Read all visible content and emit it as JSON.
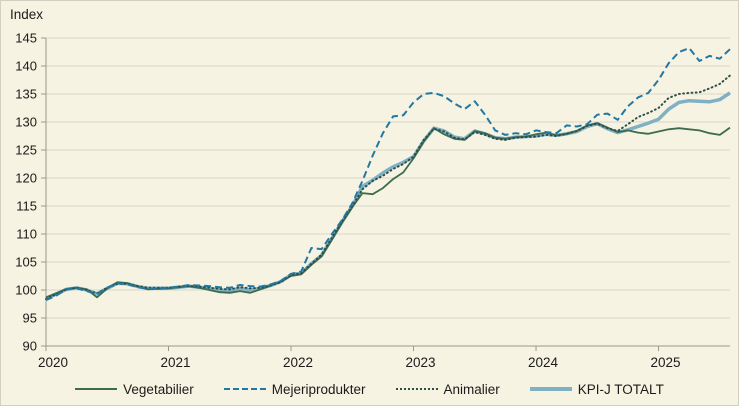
{
  "chart_data": {
    "type": "line",
    "ylabel": "Index",
    "frequency": "monthly",
    "x_tick_labels": [
      "2020",
      "2021",
      "2022",
      "2023",
      "2024",
      "2025"
    ],
    "y_ticks": [
      90,
      95,
      100,
      105,
      110,
      115,
      120,
      125,
      130,
      135,
      140,
      145
    ],
    "ylim": [
      90,
      145
    ],
    "grid": true,
    "legend_position": "bottom",
    "colors": {
      "background": "#f7f3e2",
      "grid": "#d9d6c9",
      "axis": "#9b998e",
      "text": "#1b1b1b"
    },
    "series": [
      {
        "name": "Vegetabilier",
        "color": "#3c6b4f",
        "style": "solid",
        "width": 1.8,
        "values": [
          98.7,
          99.4,
          100.2,
          100.4,
          100.1,
          98.7,
          100.3,
          101.4,
          101.2,
          100.6,
          100.1,
          100.2,
          100.3,
          100.5,
          100.7,
          100.4,
          100.0,
          99.6,
          99.5,
          99.8,
          99.5,
          100.1,
          100.8,
          101.5,
          102.5,
          102.8,
          104.5,
          106.0,
          109.0,
          112.0,
          114.8,
          117.3,
          117.1,
          118.2,
          119.8,
          121.0,
          123.5,
          126.5,
          128.9,
          127.8,
          127.0,
          126.8,
          128.4,
          128.0,
          127.2,
          127.0,
          127.3,
          127.4,
          127.8,
          128.1,
          127.6,
          127.9,
          128.4,
          129.4,
          129.8,
          129.0,
          128.2,
          128.5,
          128.1,
          127.9,
          128.3,
          128.7,
          128.9,
          128.7,
          128.5,
          128.0,
          127.7,
          129.0
        ]
      },
      {
        "name": "Mejeriprodukter",
        "color": "#2178a3",
        "style": "dashed",
        "width": 2,
        "values": [
          98.2,
          99.0,
          100.1,
          100.3,
          99.8,
          99.3,
          100.4,
          101.2,
          101.0,
          100.5,
          100.2,
          100.3,
          100.4,
          100.6,
          100.9,
          100.8,
          100.7,
          100.5,
          100.4,
          100.9,
          100.7,
          100.6,
          101.0,
          101.6,
          102.9,
          103.3,
          107.5,
          107.3,
          110.0,
          112.5,
          115.5,
          119.5,
          124.0,
          128.0,
          131.0,
          131.2,
          133.5,
          135.0,
          135.2,
          134.6,
          133.3,
          132.3,
          133.7,
          131.3,
          128.5,
          127.7,
          128.0,
          127.8,
          128.5,
          128.2,
          128.0,
          129.4,
          129.2,
          129.6,
          131.3,
          131.5,
          130.4,
          132.8,
          134.4,
          135.2,
          137.5,
          140.5,
          142.5,
          143.2,
          140.9,
          141.8,
          141.3,
          143.0
        ]
      },
      {
        "name": "Animalier",
        "color": "#2d4f48",
        "style": "dotted",
        "width": 2,
        "values": [
          98.4,
          99.2,
          100.1,
          100.4,
          100.0,
          99.4,
          100.4,
          101.1,
          101.1,
          100.7,
          100.4,
          100.4,
          100.4,
          100.6,
          100.7,
          100.6,
          100.4,
          100.2,
          100.1,
          100.5,
          100.3,
          100.4,
          100.8,
          101.4,
          102.7,
          103.0,
          104.7,
          106.3,
          109.3,
          112.3,
          115.0,
          118.0,
          119.5,
          120.4,
          121.6,
          122.5,
          123.8,
          126.8,
          128.8,
          128.3,
          127.2,
          126.9,
          128.2,
          127.7,
          127.0,
          126.8,
          127.2,
          127.3,
          127.4,
          127.7,
          127.5,
          127.9,
          128.4,
          129.3,
          129.7,
          128.9,
          128.4,
          129.6,
          130.9,
          131.6,
          132.5,
          134.3,
          135.0,
          135.2,
          135.3,
          136.0,
          136.8,
          138.3
        ]
      },
      {
        "name": "KPI-J TOTALT",
        "color": "#7fb0c4",
        "style": "thick",
        "width": 3.5,
        "values": [
          98.5,
          99.3,
          100.1,
          100.4,
          100.0,
          99.3,
          100.3,
          101.2,
          101.1,
          100.6,
          100.3,
          100.3,
          100.3,
          100.5,
          100.7,
          100.5,
          100.3,
          100.0,
          99.9,
          100.3,
          100.0,
          100.3,
          100.8,
          101.5,
          102.7,
          103.0,
          104.7,
          106.2,
          109.2,
          112.2,
          115.0,
          118.5,
          119.6,
          120.9,
          122.0,
          122.8,
          123.8,
          126.6,
          128.9,
          128.4,
          127.3,
          127.0,
          128.4,
          127.9,
          127.2,
          127.0,
          127.3,
          127.4,
          127.5,
          127.8,
          127.6,
          127.9,
          128.3,
          129.2,
          129.7,
          128.8,
          128.1,
          128.6,
          129.2,
          129.8,
          130.5,
          132.3,
          133.5,
          133.8,
          133.7,
          133.6,
          134.0,
          135.2
        ]
      }
    ]
  }
}
